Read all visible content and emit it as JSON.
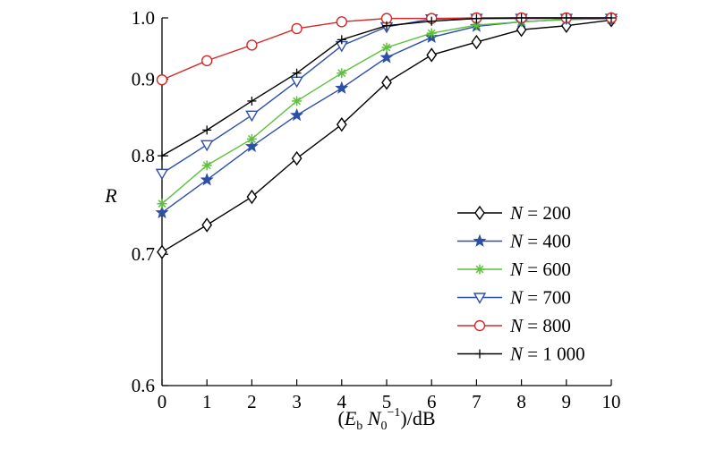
{
  "chart_data": {
    "type": "line",
    "xlabel": "(E_b N_0^-1)/dB",
    "ylabel": "R",
    "xlim": [
      0,
      10
    ],
    "ylim": [
      0.6,
      1.0
    ],
    "y_scale": "reciprocal",
    "x_ticks": [
      0,
      1,
      2,
      3,
      4,
      5,
      6,
      7,
      8,
      9,
      10
    ],
    "x_tick_labels": [
      "0",
      "1",
      "2",
      "3",
      "4",
      "5",
      "6",
      "7",
      "8",
      "9",
      "10"
    ],
    "y_ticks": [
      0.6,
      0.7,
      0.8,
      0.9,
      1.0
    ],
    "y_tick_labels": [
      "0.6",
      "0.7",
      "0.8",
      "0.9",
      "1.0"
    ],
    "grid": false,
    "legend_position": "lower-right",
    "x": [
      0,
      1,
      2,
      3,
      4,
      5,
      6,
      7,
      8,
      9,
      10
    ],
    "series": [
      {
        "name": "N = 200",
        "label_var": "N",
        "label_value": " = 200",
        "marker": "diamond",
        "color": "#000000",
        "values": [
          0.702,
          0.727,
          0.755,
          0.797,
          0.838,
          0.895,
          0.937,
          0.958,
          0.979,
          0.986,
          0.996
        ]
      },
      {
        "name": "N = 400",
        "label_var": "N",
        "label_value": " = 400",
        "marker": "star",
        "color": "#2e4fa8",
        "values": [
          0.739,
          0.773,
          0.811,
          0.85,
          0.887,
          0.933,
          0.966,
          0.985,
          0.993,
          0.997,
          0.999
        ]
      },
      {
        "name": "N = 600",
        "label_var": "N",
        "label_value": " = 600",
        "marker": "asterisk",
        "color": "#5cc23a",
        "values": [
          0.748,
          0.789,
          0.82,
          0.869,
          0.909,
          0.949,
          0.973,
          0.987,
          0.993,
          0.997,
          0.999
        ]
      },
      {
        "name": "N = 700",
        "label_var": "N",
        "label_value": " = 700",
        "marker": "triangle-down",
        "color": "#2e4fa8",
        "values": [
          0.78,
          0.813,
          0.85,
          0.897,
          0.952,
          0.984,
          0.998,
          0.999,
          0.999,
          0.999,
          0.999
        ]
      },
      {
        "name": "N = 800",
        "label_var": "N",
        "label_value": " = 800",
        "marker": "circle",
        "color": "#d42a2a",
        "values": [
          0.899,
          0.928,
          0.953,
          0.981,
          0.993,
          0.999,
          0.999,
          1.0,
          1.0,
          1.0,
          1.0
        ]
      },
      {
        "name": "N = 1 000",
        "label_var": "N",
        "label_value": " = 1 000",
        "marker": "plus",
        "color": "#000000",
        "values": [
          0.8,
          0.831,
          0.869,
          0.909,
          0.962,
          0.986,
          0.994,
          0.999,
          1.0,
          1.0,
          1.0
        ]
      }
    ]
  }
}
